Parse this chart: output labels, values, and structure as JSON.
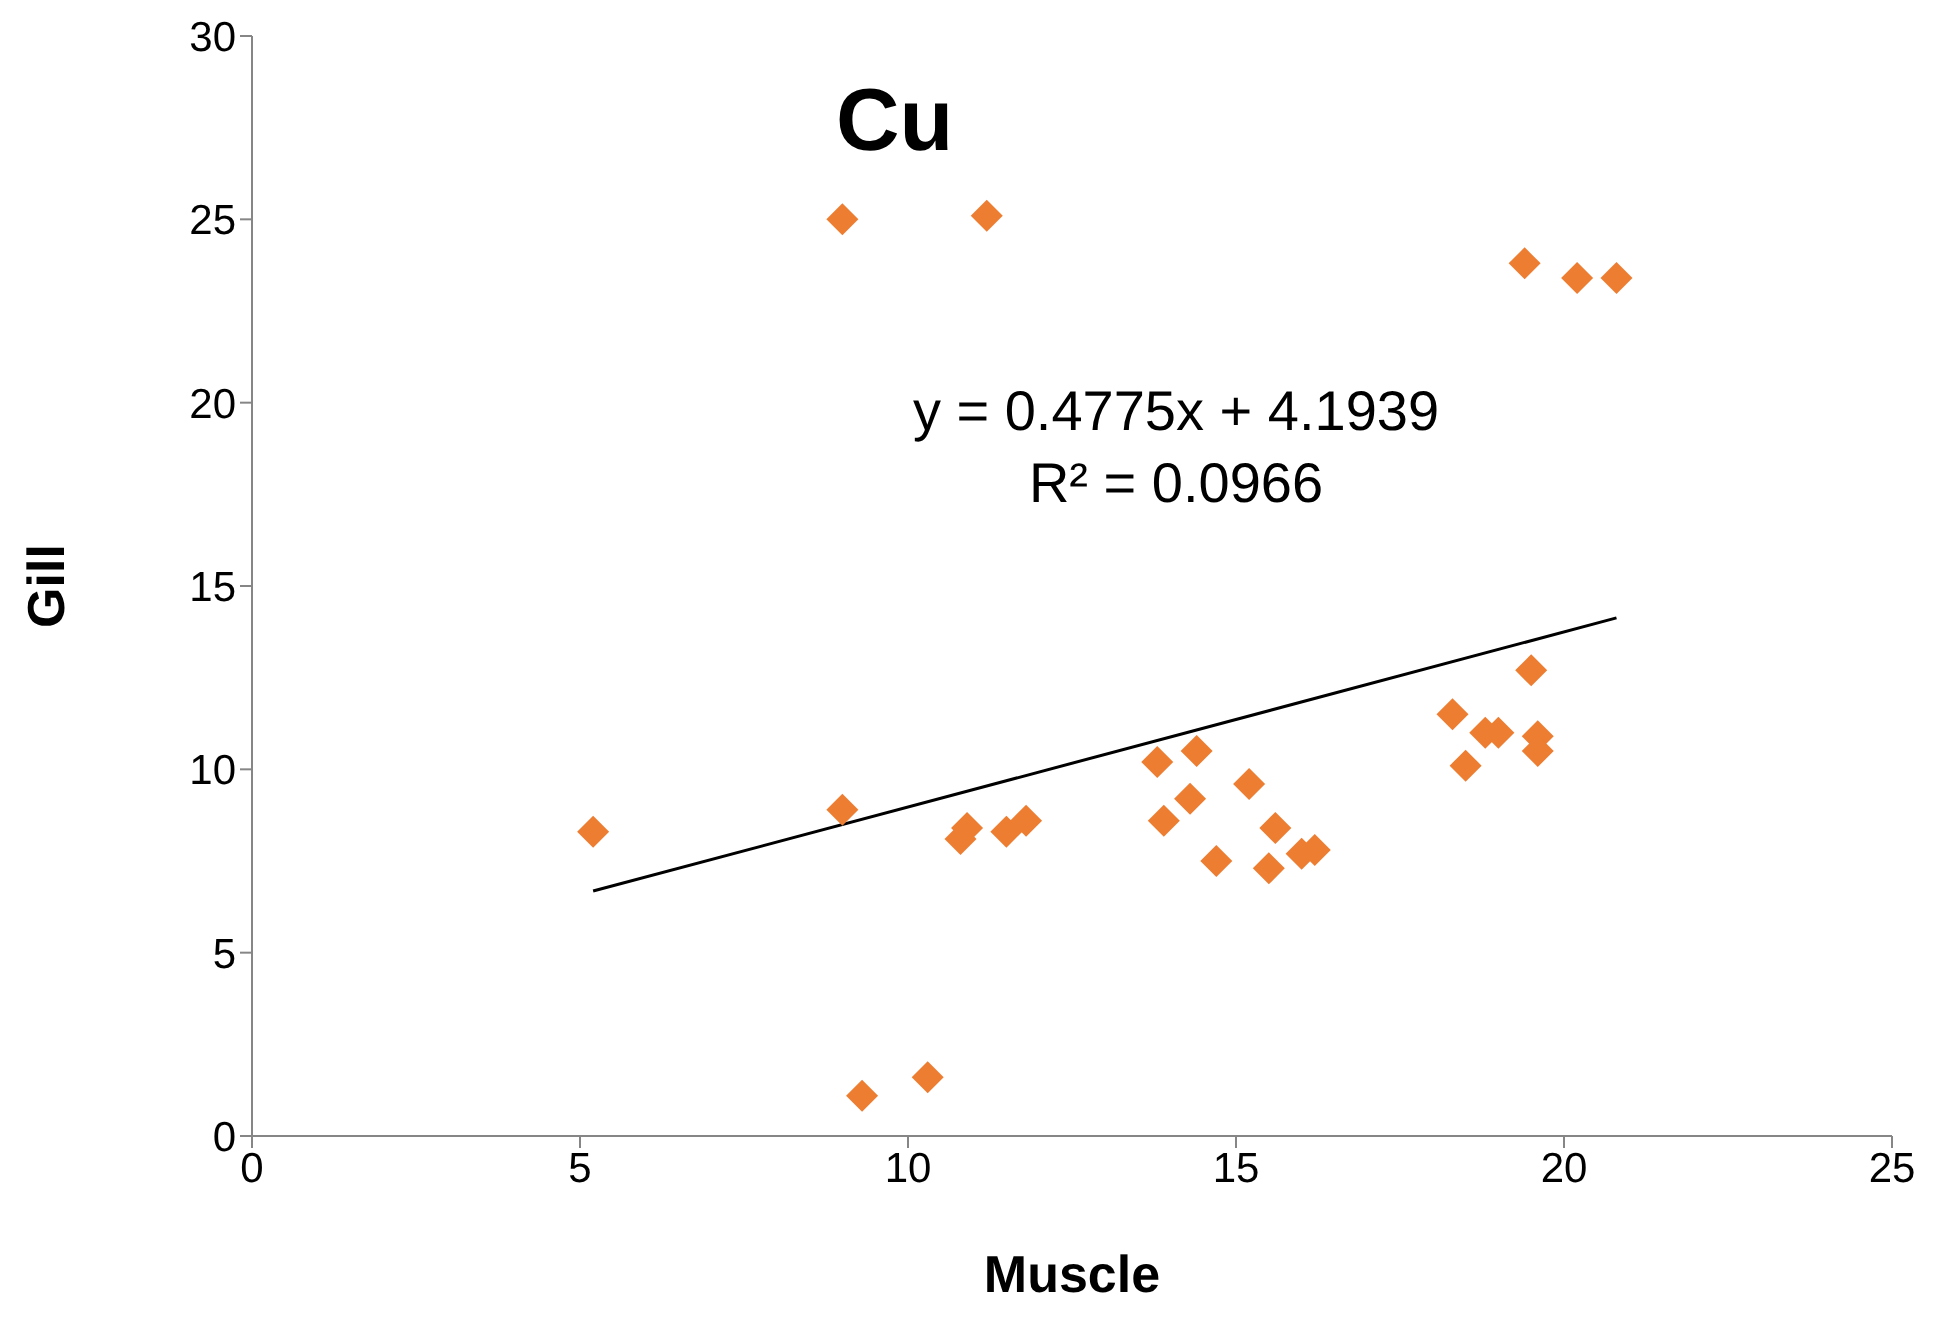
{
  "chart_data": {
    "type": "scatter",
    "title": "Cu",
    "xlabel": "Muscle",
    "ylabel": "Gill",
    "xlim": [
      0,
      25
    ],
    "xticks": [
      0,
      5,
      10,
      15,
      20,
      25
    ],
    "ylim": [
      0,
      30
    ],
    "yticks": [
      0,
      5,
      10,
      15,
      20,
      25,
      30
    ],
    "marker": "diamond",
    "annotations": [
      "y = 0.4775x + 4.1939",
      "R² = 0.0966"
    ],
    "series": [
      {
        "color": "#ed7d31",
        "x": [
          5.2,
          9.0,
          11.2,
          9.0,
          9.3,
          10.3,
          10.8,
          10.9,
          11.5,
          11.8,
          13.8,
          13.9,
          14.3,
          14.4,
          14.7,
          15.2,
          15.6,
          15.5,
          16.0,
          16.2,
          18.3,
          18.5,
          18.8,
          19.0,
          19.5,
          19.6,
          19.6,
          19.4,
          20.2,
          20.8
        ],
        "values": [
          8.3,
          25.0,
          25.1,
          8.9,
          1.1,
          1.6,
          8.1,
          8.4,
          8.3,
          8.6,
          10.2,
          8.6,
          9.2,
          10.5,
          7.5,
          9.6,
          8.4,
          7.3,
          7.7,
          7.8,
          11.5,
          10.1,
          11.0,
          11.0,
          12.7,
          10.9,
          10.5,
          23.8,
          23.4,
          23.4
        ]
      },
      {
        "type": "line",
        "color": "#000000",
        "marker": "none",
        "x": [
          5.2,
          20.8
        ],
        "values": [
          6.68,
          14.13
        ]
      }
    ]
  }
}
